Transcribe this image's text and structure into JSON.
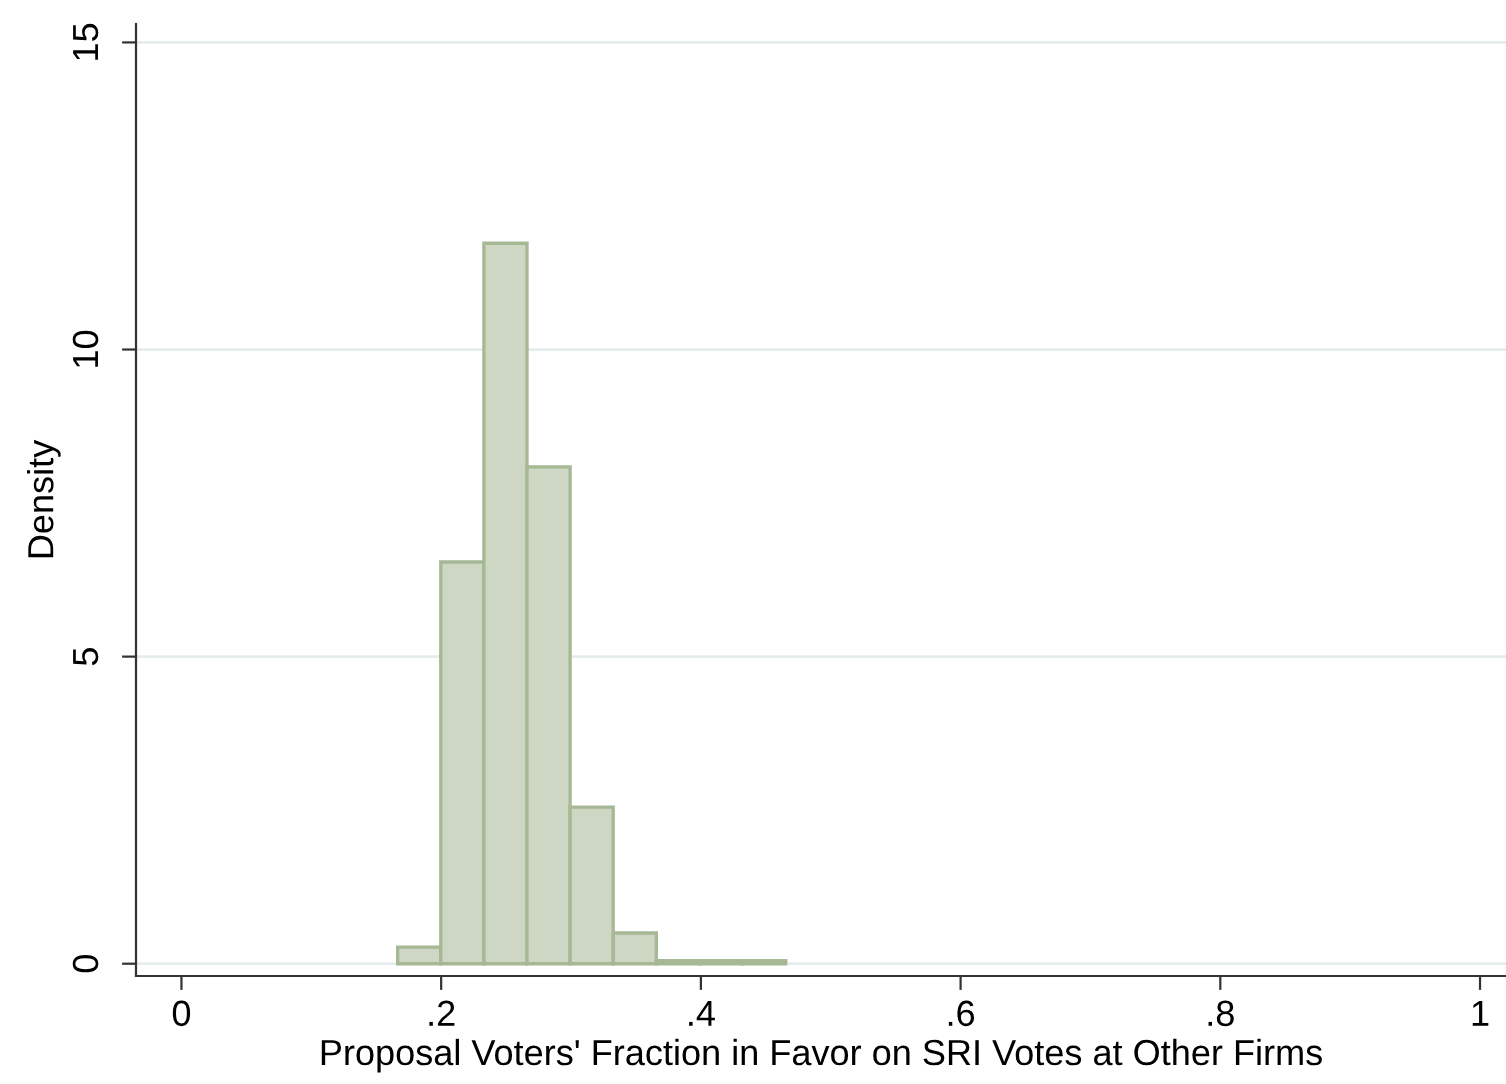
{
  "chart_data": {
    "type": "histogram",
    "xlabel": "Proposal Voters' Fraction in Favor on SRI Votes at Other Firms",
    "ylabel": "Density",
    "bins": [
      0.1665,
      0.1997,
      0.2329,
      0.2661,
      0.2993,
      0.3325,
      0.3657,
      0.3989,
      0.4321,
      0.4653
    ],
    "values": [
      0.27,
      6.54,
      11.73,
      8.09,
      2.55,
      0.5,
      0.05,
      0.05,
      0.05
    ],
    "color": "#cdd7c3",
    "xlim": [
      -0.035,
      1.02
    ],
    "xticks": [
      {
        "value": 0,
        "label": "0"
      },
      {
        "value": 0.2,
        "label": ".2"
      },
      {
        "value": 0.4,
        "label": ".4"
      },
      {
        "value": 0.6,
        "label": ".6"
      },
      {
        "value": 0.8,
        "label": ".8"
      },
      {
        "value": 1,
        "label": "1"
      }
    ],
    "ylim": [
      -0.2,
      15.3
    ],
    "yticks": [
      0,
      5,
      10,
      15
    ],
    "grid": "y"
  }
}
